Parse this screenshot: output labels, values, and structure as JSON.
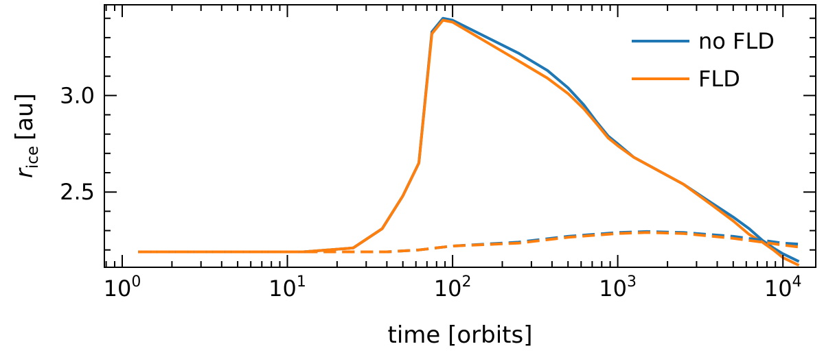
{
  "chart_data": {
    "type": "line",
    "xscale": "log",
    "xlim": [
      0.78,
      15800
    ],
    "ylim": [
      2.11,
      3.47
    ],
    "xlabel": "time [orbits]",
    "ylabel_main": "r",
    "ylabel_sub": "ice",
    "ylabel_unit": "[au]",
    "x_ticks": [
      {
        "value": 1,
        "base": "10",
        "exp": "0"
      },
      {
        "value": 10,
        "base": "10",
        "exp": "1"
      },
      {
        "value": 100,
        "base": "10",
        "exp": "2"
      },
      {
        "value": 1000,
        "base": "10",
        "exp": "3"
      },
      {
        "value": 10000,
        "base": "10",
        "exp": "4"
      }
    ],
    "y_ticks": [
      {
        "value": 2.5,
        "label": "2.5"
      },
      {
        "value": 3.0,
        "label": "3.0"
      }
    ],
    "legend_position": "top-right",
    "grid": false,
    "series": [
      {
        "name": "no FLD",
        "color": "#1f77b4",
        "style": "solid",
        "x": [
          1.25,
          12.5,
          25,
          37.5,
          50,
          62.5,
          75,
          87.5,
          100,
          250,
          375,
          500,
          625,
          750,
          875,
          1000,
          1250,
          2500,
          3750,
          5000,
          6250,
          7500,
          8750,
          10000,
          12500
        ],
        "y": [
          2.19,
          2.19,
          2.21,
          2.31,
          2.48,
          2.65,
          3.33,
          3.4,
          3.39,
          3.22,
          3.13,
          3.04,
          2.95,
          2.86,
          2.79,
          2.75,
          2.68,
          2.54,
          2.44,
          2.37,
          2.31,
          2.25,
          2.21,
          2.18,
          2.14
        ]
      },
      {
        "name": "FLD",
        "color": "#ff7f0e",
        "style": "solid",
        "x": [
          1.25,
          12.5,
          25,
          37.5,
          50,
          62.5,
          75,
          87.5,
          100,
          250,
          375,
          500,
          625,
          750,
          875,
          1000,
          1250,
          2500,
          3750,
          5000,
          6250,
          7500,
          8750,
          10000,
          12500
        ],
        "y": [
          2.19,
          2.19,
          2.21,
          2.31,
          2.48,
          2.65,
          3.32,
          3.39,
          3.38,
          3.18,
          3.09,
          3.01,
          2.93,
          2.85,
          2.78,
          2.74,
          2.68,
          2.54,
          2.43,
          2.35,
          2.28,
          2.24,
          2.2,
          2.16,
          2.12
        ]
      },
      {
        "name": "",
        "color": "#1f77b4",
        "style": "dashed",
        "x": [
          1.25,
          12.5,
          25,
          40,
          62.5,
          100,
          250,
          500,
          1000,
          1500,
          2500,
          5000,
          7500,
          10000,
          12500
        ],
        "y": [
          2.19,
          2.19,
          2.19,
          2.19,
          2.2,
          2.22,
          2.24,
          2.27,
          2.29,
          2.295,
          2.29,
          2.27,
          2.25,
          2.235,
          2.23
        ]
      },
      {
        "name": "",
        "color": "#ff7f0e",
        "style": "dashed",
        "x": [
          1.25,
          12.5,
          25,
          40,
          62.5,
          100,
          250,
          500,
          1000,
          1500,
          2500,
          5000,
          7500,
          10000,
          12500
        ],
        "y": [
          2.19,
          2.19,
          2.19,
          2.19,
          2.2,
          2.22,
          2.235,
          2.265,
          2.285,
          2.29,
          2.285,
          2.26,
          2.24,
          2.225,
          2.215
        ]
      }
    ]
  }
}
